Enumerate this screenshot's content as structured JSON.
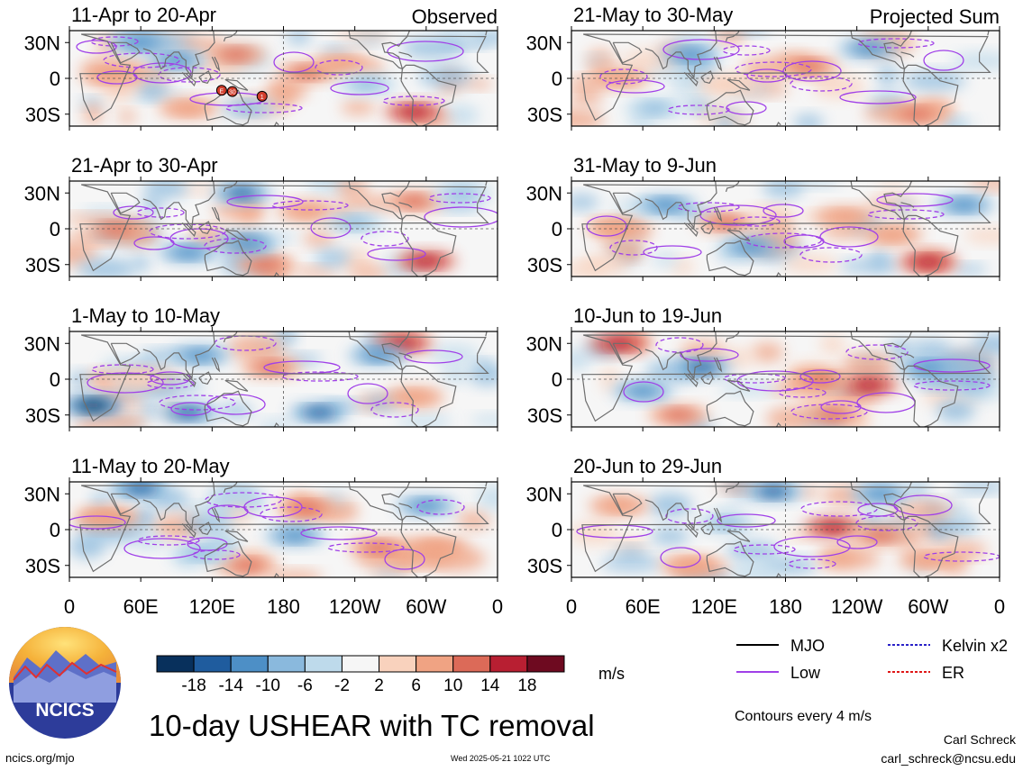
{
  "chart_data": {
    "type": "heatmap",
    "variable": "10-day USHEAR with TC removal",
    "title": "10-day USHEAR with TC removal",
    "units": "m/s",
    "x_axis": {
      "ticks": [
        "0",
        "60E",
        "120E",
        "180",
        "120W",
        "60W",
        "0"
      ],
      "range_deg_east": [
        0,
        360
      ]
    },
    "y_axis": {
      "ticks": [
        "30N",
        "0",
        "30S"
      ],
      "range_deg_lat": [
        -40,
        40
      ]
    },
    "colorbar": {
      "labels": [
        "-18",
        "-14",
        "-10",
        "-6",
        "-2",
        "2",
        "6",
        "10",
        "14",
        "18"
      ],
      "colors": [
        "#08305c",
        "#1f5c9e",
        "#4d8fc6",
        "#8ab9dd",
        "#bedaeb",
        "#f6f6f6",
        "#f9d2bd",
        "#f0a383",
        "#dc6a58",
        "#b81f32",
        "#6e0a20"
      ]
    },
    "column_headers": {
      "left": "Observed",
      "right": "Projected Sum"
    },
    "legend": [
      {
        "label": "MJO",
        "color": "#000000",
        "style": "solid"
      },
      {
        "label": "Kelvin x2",
        "color": "#2a22c8",
        "style": "dashed"
      },
      {
        "label": "Low",
        "color": "#a040e8",
        "style": "solid"
      },
      {
        "label": "ER",
        "color": "#e01818",
        "style": "dashed"
      }
    ],
    "contour_note": "Contours every 4 m/s",
    "panels": [
      {
        "title": "11-Apr to 20-Apr",
        "column": "Observed",
        "features": [
          {
            "lon": 140,
            "lat": 20,
            "value": 14
          },
          {
            "lon": 200,
            "lat": 5,
            "value": 14
          },
          {
            "lon": 230,
            "lat": 12,
            "value": 10
          },
          {
            "lon": 290,
            "lat": -28,
            "value": 18
          },
          {
            "lon": 35,
            "lat": 2,
            "value": 10
          },
          {
            "lon": 90,
            "lat": 15,
            "value": -10
          },
          {
            "lon": 60,
            "lat": 30,
            "value": -10
          },
          {
            "lon": 150,
            "lat": -25,
            "value": -6
          },
          {
            "lon": 250,
            "lat": -5,
            "value": -6
          },
          {
            "lon": 100,
            "lat": -25,
            "value": 10
          }
        ],
        "tc_markers": [
          {
            "lon": 128,
            "lat": -10,
            "label": "E"
          },
          {
            "lon": 137,
            "lat": -11,
            "label": "30"
          },
          {
            "lon": 162,
            "lat": -15,
            "label": "1"
          }
        ]
      },
      {
        "title": "21-Apr to 30-Apr",
        "column": "Observed",
        "features": [
          {
            "lon": 40,
            "lat": 0,
            "value": 14
          },
          {
            "lon": 200,
            "lat": 15,
            "value": 10
          },
          {
            "lon": 290,
            "lat": 23,
            "value": 14
          },
          {
            "lon": 300,
            "lat": -27,
            "value": 18
          },
          {
            "lon": 165,
            "lat": -30,
            "value": 14
          },
          {
            "lon": 145,
            "lat": 30,
            "value": -14
          },
          {
            "lon": 150,
            "lat": -12,
            "value": -10
          },
          {
            "lon": 100,
            "lat": -20,
            "value": -10
          },
          {
            "lon": 240,
            "lat": 5,
            "value": -6
          },
          {
            "lon": 330,
            "lat": 30,
            "value": -6
          }
        ]
      },
      {
        "title": "1-May to 10-May",
        "column": "Observed",
        "features": [
          {
            "lon": 280,
            "lat": 30,
            "value": 18
          },
          {
            "lon": 170,
            "lat": 10,
            "value": 14
          },
          {
            "lon": 290,
            "lat": -15,
            "value": 10
          },
          {
            "lon": 60,
            "lat": 0,
            "value": 6
          },
          {
            "lon": 20,
            "lat": -22,
            "value": -18
          },
          {
            "lon": 100,
            "lat": -28,
            "value": -14
          },
          {
            "lon": 210,
            "lat": -28,
            "value": -14
          },
          {
            "lon": 110,
            "lat": 20,
            "value": -10
          },
          {
            "lon": 260,
            "lat": 20,
            "value": -10
          }
        ]
      },
      {
        "title": "11-May to 20-May",
        "column": "Observed",
        "features": [
          {
            "lon": 200,
            "lat": 18,
            "value": 14
          },
          {
            "lon": 260,
            "lat": -15,
            "value": 14
          },
          {
            "lon": 150,
            "lat": -30,
            "value": 14
          },
          {
            "lon": 310,
            "lat": -15,
            "value": 10
          },
          {
            "lon": 30,
            "lat": 10,
            "value": 10
          },
          {
            "lon": 60,
            "lat": 35,
            "value": -14
          },
          {
            "lon": 190,
            "lat": -5,
            "value": -10
          },
          {
            "lon": 300,
            "lat": 20,
            "value": -10
          },
          {
            "lon": 110,
            "lat": -20,
            "value": -6
          }
        ]
      },
      {
        "title": "21-May to 30-May",
        "column": "Projected Sum",
        "features": [
          {
            "lon": 200,
            "lat": 10,
            "value": 14
          },
          {
            "lon": 40,
            "lat": 0,
            "value": 10
          },
          {
            "lon": 290,
            "lat": -30,
            "value": 14
          },
          {
            "lon": 130,
            "lat": -5,
            "value": 6
          },
          {
            "lon": 100,
            "lat": 20,
            "value": -10
          },
          {
            "lon": 250,
            "lat": 25,
            "value": -10
          },
          {
            "lon": 70,
            "lat": -25,
            "value": -6
          }
        ]
      },
      {
        "title": "31-May to 9-Jun",
        "column": "Projected Sum",
        "features": [
          {
            "lon": 300,
            "lat": -28,
            "value": 18
          },
          {
            "lon": 130,
            "lat": 5,
            "value": 14
          },
          {
            "lon": 230,
            "lat": 10,
            "value": 10
          },
          {
            "lon": 270,
            "lat": -5,
            "value": 10
          },
          {
            "lon": 40,
            "lat": 0,
            "value": 10
          },
          {
            "lon": 80,
            "lat": 20,
            "value": -10
          },
          {
            "lon": 150,
            "lat": -15,
            "value": -10
          },
          {
            "lon": 330,
            "lat": 20,
            "value": -10
          }
        ]
      },
      {
        "title": "10-Jun to 19-Jun",
        "column": "Projected Sum",
        "features": [
          {
            "lon": 40,
            "lat": 30,
            "value": 18
          },
          {
            "lon": 250,
            "lat": -5,
            "value": 18
          },
          {
            "lon": 210,
            "lat": 0,
            "value": 14
          },
          {
            "lon": 90,
            "lat": -30,
            "value": 14
          },
          {
            "lon": 220,
            "lat": -30,
            "value": 14
          },
          {
            "lon": 110,
            "lat": 10,
            "value": -14
          },
          {
            "lon": 60,
            "lat": -10,
            "value": -10
          },
          {
            "lon": 300,
            "lat": 10,
            "value": -10
          }
        ]
      },
      {
        "title": "20-Jun to 29-Jun",
        "column": "Projected Sum",
        "features": [
          {
            "lon": 220,
            "lat": 2,
            "value": 18
          },
          {
            "lon": 260,
            "lat": -5,
            "value": 14
          },
          {
            "lon": 40,
            "lat": 20,
            "value": 10
          },
          {
            "lon": 100,
            "lat": -30,
            "value": 10
          },
          {
            "lon": 300,
            "lat": -25,
            "value": 10
          },
          {
            "lon": 170,
            "lat": 32,
            "value": -14
          },
          {
            "lon": 260,
            "lat": 30,
            "value": -10
          },
          {
            "lon": 130,
            "lat": 5,
            "value": -6
          }
        ]
      }
    ]
  },
  "footer": {
    "logo_text": "NCICS",
    "site": "ncics.org/mjo",
    "timestamp": "Wed 2025-05-21 1022 UTC",
    "author": "Carl Schreck",
    "email": "carl_schreck@ncsu.edu"
  }
}
